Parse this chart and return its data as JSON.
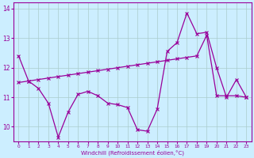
{
  "xlabel": "Windchill (Refroidissement éolien,°C)",
  "background_color": "#cceeff",
  "line_color": "#990099",
  "grid_color": "#aacccc",
  "xlim": [
    -0.5,
    23.5
  ],
  "ylim": [
    9.5,
    14.2
  ],
  "yticks": [
    10,
    11,
    12,
    13,
    14
  ],
  "xticks": [
    0,
    1,
    2,
    3,
    4,
    5,
    6,
    7,
    8,
    9,
    10,
    11,
    12,
    13,
    14,
    15,
    16,
    17,
    18,
    19,
    20,
    21,
    22,
    23
  ],
  "series1_x": [
    0,
    1,
    2,
    3,
    4,
    5,
    6,
    7,
    8,
    9,
    10,
    11,
    12,
    13,
    14,
    15,
    16,
    17,
    18,
    19,
    20,
    21,
    22,
    23
  ],
  "series1_y": [
    12.4,
    11.55,
    11.3,
    10.8,
    9.65,
    10.5,
    11.1,
    11.2,
    11.05,
    10.8,
    10.75,
    10.65,
    9.9,
    9.85,
    10.6,
    12.55,
    12.85,
    13.85,
    13.15,
    13.2,
    12.0,
    11.0,
    11.6,
    11.0
  ],
  "series2_x": [
    0,
    1,
    2,
    3,
    4,
    5,
    6,
    7,
    8,
    9,
    10,
    11,
    12,
    13,
    14,
    15,
    16,
    17,
    18,
    19,
    20,
    21,
    22,
    23
  ],
  "series2_y": [
    11.5,
    11.55,
    11.6,
    11.65,
    11.7,
    11.75,
    11.8,
    11.85,
    11.9,
    11.95,
    12.0,
    12.05,
    12.1,
    12.15,
    12.2,
    12.25,
    12.3,
    12.35,
    12.4,
    13.1,
    11.05,
    11.05,
    11.05,
    11.0
  ]
}
